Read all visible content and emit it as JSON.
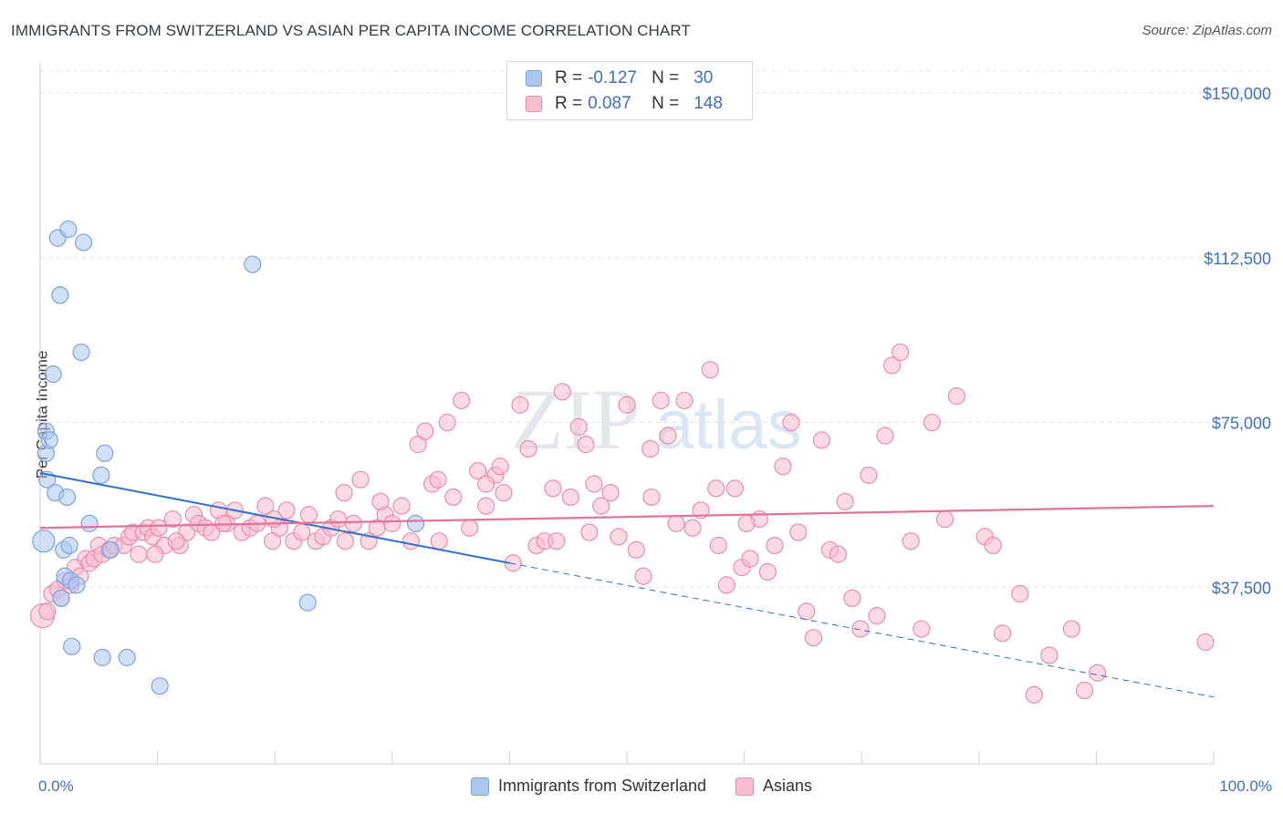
{
  "title": "IMMIGRANTS FROM SWITZERLAND VS ASIAN PER CAPITA INCOME CORRELATION CHART",
  "source": "Source: ZipAtlas.com",
  "watermark": {
    "zip": "ZIP",
    "atlas": "atlas"
  },
  "legend": {
    "rows": [
      {
        "r_label": "R =",
        "r_value": "-0.127",
        "n_label": "N =",
        "n_value": "30",
        "color": "#aac7f0",
        "border": "#7da3dd"
      },
      {
        "r_label": "R =",
        "r_value": "0.087",
        "n_label": "N =",
        "n_value": "148",
        "color": "#f7bccd",
        "border": "#e88eaa"
      }
    ]
  },
  "bottom_legend": [
    "Immigrants from Switzerland",
    "Asians"
  ],
  "chart_data": {
    "type": "scatter",
    "ylabel": "Per Capita Income",
    "xlim": [
      0,
      100
    ],
    "ylim": [
      0,
      155000
    ],
    "x_tick_labels": {
      "left": "0.0%",
      "right": "100.0%"
    },
    "y_ticks": [
      {
        "value": 37500,
        "label": "$37,500"
      },
      {
        "value": 75000,
        "label": "$75,000"
      },
      {
        "value": 112500,
        "label": "$112,500"
      },
      {
        "value": 150000,
        "label": "$150,000"
      }
    ],
    "grid": true,
    "legend_position": "top-center",
    "series": [
      {
        "name": "Immigrants from Switzerland",
        "color": "#aac7f0",
        "stroke": "#7da3dd",
        "trend_color": "#2f6fd0",
        "trend": {
          "x0": 0,
          "y0": 63500,
          "x1": 40,
          "y1": 43000,
          "dash_to": 100,
          "dash_y": 12500
        },
        "points": [
          [
            0.3,
            48000
          ],
          [
            0.5,
            68000
          ],
          [
            0.6,
            62000
          ],
          [
            0.5,
            73000
          ],
          [
            0.8,
            71000
          ],
          [
            1.1,
            86000
          ],
          [
            1.3,
            59000
          ],
          [
            1.5,
            117000
          ],
          [
            1.7,
            104000
          ],
          [
            1.8,
            35000
          ],
          [
            2.0,
            46000
          ],
          [
            2.1,
            40000
          ],
          [
            2.3,
            58000
          ],
          [
            2.5,
            47000
          ],
          [
            2.6,
            39000
          ],
          [
            2.7,
            24000
          ],
          [
            2.4,
            119000
          ],
          [
            3.1,
            38000
          ],
          [
            3.5,
            91000
          ],
          [
            3.7,
            116000
          ],
          [
            4.2,
            52000
          ],
          [
            5.2,
            63000
          ],
          [
            5.5,
            68000
          ],
          [
            5.3,
            21500
          ],
          [
            6.0,
            46000
          ],
          [
            7.4,
            21500
          ],
          [
            10.2,
            15000
          ],
          [
            18.1,
            111000
          ],
          [
            22.8,
            34000
          ],
          [
            32.0,
            52000
          ]
        ]
      },
      {
        "name": "Asians",
        "color": "#f7bccd",
        "stroke": "#e88eaa",
        "trend_color": "#e3739a",
        "trend": {
          "x0": 0,
          "y0": 51000,
          "x1": 100,
          "y1": 56000
        },
        "points": [
          [
            0.2,
            31000
          ],
          [
            0.6,
            32000
          ],
          [
            1.0,
            36000
          ],
          [
            1.5,
            37000
          ],
          [
            1.8,
            35000
          ],
          [
            2.1,
            39000
          ],
          [
            2.6,
            38000
          ],
          [
            3.0,
            42000
          ],
          [
            3.4,
            40000
          ],
          [
            3.9,
            44000
          ],
          [
            4.2,
            43000
          ],
          [
            4.6,
            44000
          ],
          [
            5.0,
            47000
          ],
          [
            5.3,
            45000
          ],
          [
            5.9,
            46000
          ],
          [
            6.3,
            47000
          ],
          [
            7.1,
            47000
          ],
          [
            7.6,
            49000
          ],
          [
            7.9,
            50000
          ],
          [
            8.4,
            45000
          ],
          [
            8.8,
            50000
          ],
          [
            9.2,
            51000
          ],
          [
            9.6,
            49000
          ],
          [
            10.1,
            51000
          ],
          [
            10.6,
            47000
          ],
          [
            11.3,
            53000
          ],
          [
            11.9,
            47000
          ],
          [
            12.5,
            50000
          ],
          [
            13.1,
            54000
          ],
          [
            13.5,
            52000
          ],
          [
            14.1,
            51000
          ],
          [
            14.6,
            50000
          ],
          [
            15.2,
            55000
          ],
          [
            15.9,
            52000
          ],
          [
            16.6,
            55000
          ],
          [
            17.2,
            50000
          ],
          [
            17.9,
            51000
          ],
          [
            18.5,
            52000
          ],
          [
            19.2,
            56000
          ],
          [
            19.8,
            48000
          ],
          [
            20.4,
            51000
          ],
          [
            21.0,
            55000
          ],
          [
            21.6,
            48000
          ],
          [
            22.3,
            50000
          ],
          [
            22.9,
            54000
          ],
          [
            23.5,
            48000
          ],
          [
            24.1,
            49000
          ],
          [
            24.8,
            51000
          ],
          [
            25.4,
            53000
          ],
          [
            26.0,
            48000
          ],
          [
            26.7,
            52000
          ],
          [
            27.3,
            62000
          ],
          [
            28.0,
            48000
          ],
          [
            28.7,
            51000
          ],
          [
            29.4,
            54000
          ],
          [
            30.0,
            52000
          ],
          [
            30.8,
            56000
          ],
          [
            31.6,
            48000
          ],
          [
            32.2,
            70000
          ],
          [
            32.8,
            73000
          ],
          [
            33.4,
            61000
          ],
          [
            34.0,
            48000
          ],
          [
            34.7,
            75000
          ],
          [
            35.2,
            58000
          ],
          [
            35.9,
            80000
          ],
          [
            36.6,
            51000
          ],
          [
            37.3,
            64000
          ],
          [
            38.0,
            56000
          ],
          [
            38.8,
            63000
          ],
          [
            39.5,
            59000
          ],
          [
            40.3,
            43000
          ],
          [
            40.9,
            79000
          ],
          [
            41.6,
            69000
          ],
          [
            42.3,
            47000
          ],
          [
            43.0,
            48000
          ],
          [
            43.7,
            60000
          ],
          [
            44.5,
            82000
          ],
          [
            45.2,
            58000
          ],
          [
            45.9,
            74000
          ],
          [
            46.5,
            70000
          ],
          [
            47.2,
            61000
          ],
          [
            47.8,
            56000
          ],
          [
            48.6,
            59000
          ],
          [
            49.3,
            49000
          ],
          [
            50.0,
            79000
          ],
          [
            50.8,
            46000
          ],
          [
            51.4,
            40000
          ],
          [
            52.1,
            58000
          ],
          [
            52.9,
            80000
          ],
          [
            53.5,
            72000
          ],
          [
            54.2,
            52000
          ],
          [
            54.9,
            80000
          ],
          [
            55.6,
            51000
          ],
          [
            56.3,
            55000
          ],
          [
            57.1,
            87000
          ],
          [
            57.8,
            47000
          ],
          [
            58.5,
            38000
          ],
          [
            59.2,
            60000
          ],
          [
            59.8,
            42000
          ],
          [
            60.5,
            44000
          ],
          [
            61.3,
            53000
          ],
          [
            62.0,
            41000
          ],
          [
            62.6,
            47000
          ],
          [
            63.3,
            65000
          ],
          [
            64.0,
            75000
          ],
          [
            64.6,
            50000
          ],
          [
            65.3,
            32000
          ],
          [
            65.9,
            26000
          ],
          [
            66.6,
            71000
          ],
          [
            67.3,
            46000
          ],
          [
            68.0,
            45000
          ],
          [
            68.6,
            57000
          ],
          [
            69.2,
            35000
          ],
          [
            69.9,
            28000
          ],
          [
            70.6,
            63000
          ],
          [
            71.3,
            31000
          ],
          [
            72.0,
            72000
          ],
          [
            72.6,
            88000
          ],
          [
            73.3,
            91000
          ],
          [
            74.2,
            48000
          ],
          [
            75.1,
            28000
          ],
          [
            76.0,
            75000
          ],
          [
            77.1,
            53000
          ],
          [
            78.1,
            81000
          ],
          [
            80.5,
            49000
          ],
          [
            81.2,
            47000
          ],
          [
            82.0,
            27000
          ],
          [
            83.5,
            36000
          ],
          [
            84.7,
            13000
          ],
          [
            86.0,
            22000
          ],
          [
            87.9,
            28000
          ],
          [
            89.0,
            14000
          ],
          [
            90.1,
            18000
          ],
          [
            99.3,
            25000
          ],
          [
            11.6,
            48000
          ],
          [
            19.9,
            53000
          ],
          [
            25.9,
            59000
          ],
          [
            39.2,
            65000
          ],
          [
            46.8,
            50000
          ],
          [
            38.0,
            61000
          ],
          [
            44.0,
            48000
          ],
          [
            9.8,
            45000
          ],
          [
            15.6,
            52000
          ],
          [
            29.0,
            57000
          ],
          [
            33.9,
            62000
          ],
          [
            52.0,
            69000
          ],
          [
            60.2,
            52000
          ],
          [
            57.6,
            60000
          ]
        ]
      }
    ]
  }
}
